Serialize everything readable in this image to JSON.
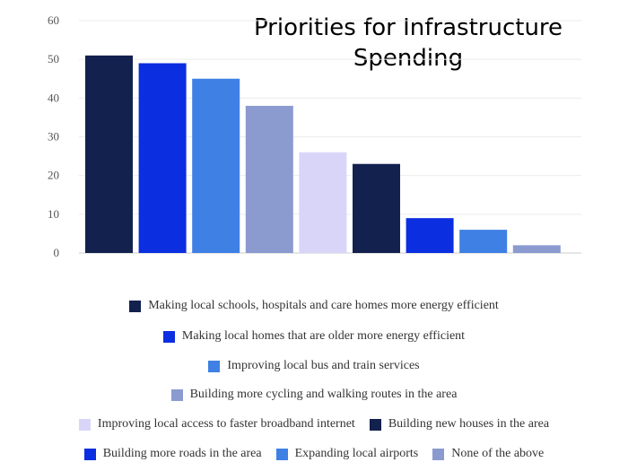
{
  "chart_data": {
    "type": "bar",
    "title_lines": [
      "Priorities for Infrastructure",
      "Spending"
    ],
    "xlabel": "",
    "ylabel": "",
    "ylim": [
      0,
      60
    ],
    "yticks": [
      "0",
      "10",
      "20",
      "30",
      "40",
      "50",
      "60"
    ],
    "grid": true,
    "legend_position": "bottom",
    "categories": [
      "Making local schools, hospitals and care homes more energy efficient",
      "Making local homes that are older more energy efficient",
      "Improving local bus and train services",
      "Building more cycling and walking routes in the area",
      "Improving local access to faster broadband internet",
      "Building new houses in the area",
      "Building more roads in the area",
      "Expanding local airports",
      "None of the above"
    ],
    "values": [
      51,
      49,
      45,
      38,
      26,
      23,
      9,
      6,
      2
    ],
    "colors": [
      "#13214f",
      "#0b2ee0",
      "#3f80e4",
      "#8b9bd0",
      "#d9d5f9",
      "#13214f",
      "#0b2ee0",
      "#3f80e4",
      "#8b9bd0"
    ]
  }
}
